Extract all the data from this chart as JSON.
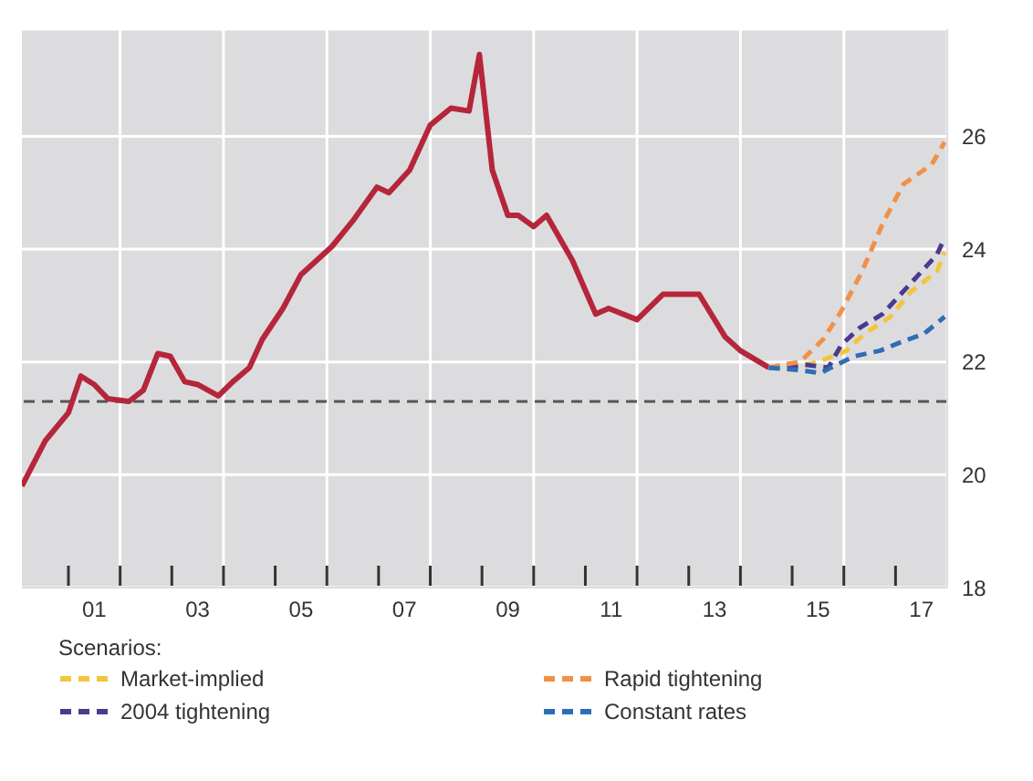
{
  "chart_data": {
    "type": "line",
    "legend_title": "Scenarios:",
    "legend": "bottom",
    "grid": true,
    "marker": "none",
    "xlim": [
      -0.4,
      17.5
    ],
    "ylim": [
      18,
      27.9
    ],
    "yticks": [
      18,
      20,
      22,
      24,
      26
    ],
    "xticks": [
      {
        "value": 0.5,
        "label": null
      },
      {
        "value": 1,
        "label": "01"
      },
      {
        "value": 1.5,
        "label": null
      },
      {
        "value": 2.5,
        "label": null
      },
      {
        "value": 3,
        "label": "03"
      },
      {
        "value": 3.5,
        "label": null
      },
      {
        "value": 4.5,
        "label": null
      },
      {
        "value": 5,
        "label": "05"
      },
      {
        "value": 5.5,
        "label": null
      },
      {
        "value": 6.5,
        "label": null
      },
      {
        "value": 7,
        "label": "07"
      },
      {
        "value": 7.5,
        "label": null
      },
      {
        "value": 8.5,
        "label": null
      },
      {
        "value": 9,
        "label": "09"
      },
      {
        "value": 9.5,
        "label": null
      },
      {
        "value": 10.5,
        "label": null
      },
      {
        "value": 11,
        "label": "11"
      },
      {
        "value": 11.5,
        "label": null
      },
      {
        "value": 12.5,
        "label": null
      },
      {
        "value": 13,
        "label": "13"
      },
      {
        "value": 13.5,
        "label": null
      },
      {
        "value": 14.5,
        "label": null
      },
      {
        "value": 15,
        "label": "15"
      },
      {
        "value": 15.5,
        "label": null
      },
      {
        "value": 16.5,
        "label": null
      },
      {
        "value": 17,
        "label": "17"
      }
    ],
    "ref_lines": [
      {
        "axis": "y",
        "value": 21.3,
        "color": "#555555",
        "line_style": "dashed"
      }
    ],
    "series": [
      {
        "color": "#b5263a",
        "line_style": "solid",
        "x": [
          -0.4,
          0.05,
          0.5,
          0.74,
          1.0,
          1.26,
          1.67,
          1.95,
          2.23,
          2.47,
          2.75,
          3.0,
          3.4,
          3.68,
          4.0,
          4.25,
          4.65,
          5.0,
          5.6,
          6.0,
          6.47,
          6.7,
          7.1,
          7.5,
          7.9,
          8.25,
          8.45,
          8.7,
          9.0,
          9.2,
          9.5,
          9.75,
          10.25,
          10.7,
          10.95,
          11.5,
          12.0,
          12.7,
          13.2,
          13.5,
          14.05
        ],
        "values": [
          19.8,
          20.6,
          21.1,
          21.75,
          21.6,
          21.35,
          21.3,
          21.5,
          22.15,
          22.1,
          21.65,
          21.6,
          21.4,
          21.65,
          21.9,
          22.4,
          22.95,
          23.55,
          24.05,
          24.5,
          25.1,
          25.0,
          25.4,
          26.2,
          26.5,
          26.45,
          27.45,
          25.4,
          24.6,
          24.6,
          24.4,
          24.6,
          23.8,
          22.85,
          22.95,
          22.75,
          23.2,
          23.2,
          22.45,
          22.2,
          21.9
        ]
      },
      {
        "name": "Market-implied",
        "color": "#f2c53d",
        "line_style": "dashed",
        "x": [
          14.05,
          14.5,
          15.0,
          15.55,
          15.9,
          16.4,
          16.8,
          17.3,
          17.45
        ],
        "values": [
          21.9,
          21.9,
          22.0,
          22.2,
          22.5,
          22.8,
          23.25,
          23.6,
          23.95
        ]
      },
      {
        "name": "2004 tightening",
        "color": "#4b3a8f",
        "line_style": "dashed",
        "x": [
          14.05,
          14.75,
          15.2,
          15.45,
          15.8,
          16.25,
          16.6,
          16.95,
          17.3,
          17.45
        ],
        "values": [
          21.9,
          21.95,
          21.9,
          22.3,
          22.6,
          22.85,
          23.2,
          23.55,
          23.9,
          24.2
        ]
      },
      {
        "name": "Rapid tightening",
        "color": "#f0914a",
        "line_style": "dashed",
        "x": [
          14.05,
          14.3,
          14.65,
          15.1,
          15.45,
          15.85,
          16.25,
          16.65,
          17.2,
          17.45
        ],
        "values": [
          21.9,
          21.95,
          22.0,
          22.4,
          22.9,
          23.6,
          24.45,
          25.15,
          25.5,
          25.9
        ]
      },
      {
        "name": "Constant rates",
        "color": "#2f6db5",
        "line_style": "dashed",
        "x": [
          14.05,
          14.7,
          15.05,
          15.25,
          15.7,
          16.2,
          16.6,
          17.05,
          17.45
        ],
        "values": [
          21.9,
          21.85,
          21.8,
          21.9,
          22.1,
          22.2,
          22.35,
          22.5,
          22.8
        ]
      }
    ]
  }
}
